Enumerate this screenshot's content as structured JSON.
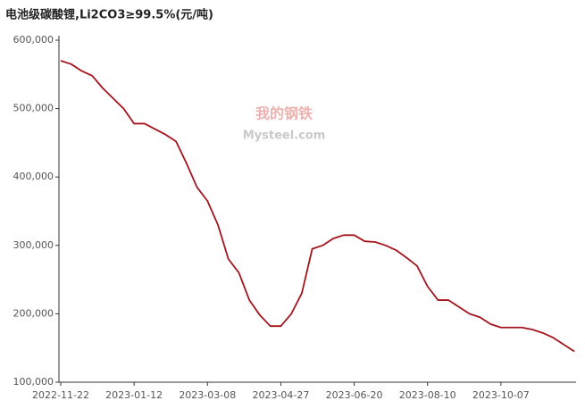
{
  "chart_data": {
    "type": "line",
    "title": "电池级碳酸锂,Li2CO3≥99.5%(元/吨)",
    "watermark": [
      "我的钢铁",
      "Mysteel.com"
    ],
    "categories": [
      "2022-11-22",
      null,
      null,
      null,
      null,
      null,
      null,
      "2023-01-12",
      null,
      null,
      null,
      null,
      null,
      null,
      "2023-03-08",
      null,
      null,
      null,
      null,
      null,
      null,
      "2023-04-27",
      null,
      null,
      null,
      null,
      null,
      null,
      "2023-06-20",
      null,
      null,
      null,
      null,
      null,
      null,
      "2023-08-10",
      null,
      null,
      null,
      null,
      null,
      null,
      "2023-10-07",
      null,
      null,
      null,
      null,
      null,
      null,
      null
    ],
    "series": [
      {
        "name": "电池级碳酸锂",
        "color": "#a3141d",
        "values": [
          570000,
          565000,
          555000,
          548000,
          530000,
          515000,
          500000,
          478000,
          478000,
          470000,
          462000,
          452000,
          420000,
          385000,
          365000,
          330000,
          280000,
          260000,
          220000,
          198000,
          182000,
          182000,
          200000,
          230000,
          295000,
          300000,
          310000,
          315000,
          315000,
          306000,
          305000,
          300000,
          293000,
          282000,
          270000,
          240000,
          220000,
          220000,
          210000,
          200000,
          195000,
          185000,
          180000,
          180000,
          180000,
          177000,
          172000,
          165000,
          155000,
          145000
        ]
      }
    ],
    "ylim": [
      100000,
      600000
    ],
    "yticks": [
      {
        "value": 100000,
        "label": "100,000"
      },
      {
        "value": 200000,
        "label": "200,000"
      },
      {
        "value": 300000,
        "label": "300,000"
      },
      {
        "value": 400000,
        "label": "400,000"
      },
      {
        "value": 500000,
        "label": "500,000"
      },
      {
        "value": 600000,
        "label": "600,000"
      }
    ],
    "grid": false
  }
}
